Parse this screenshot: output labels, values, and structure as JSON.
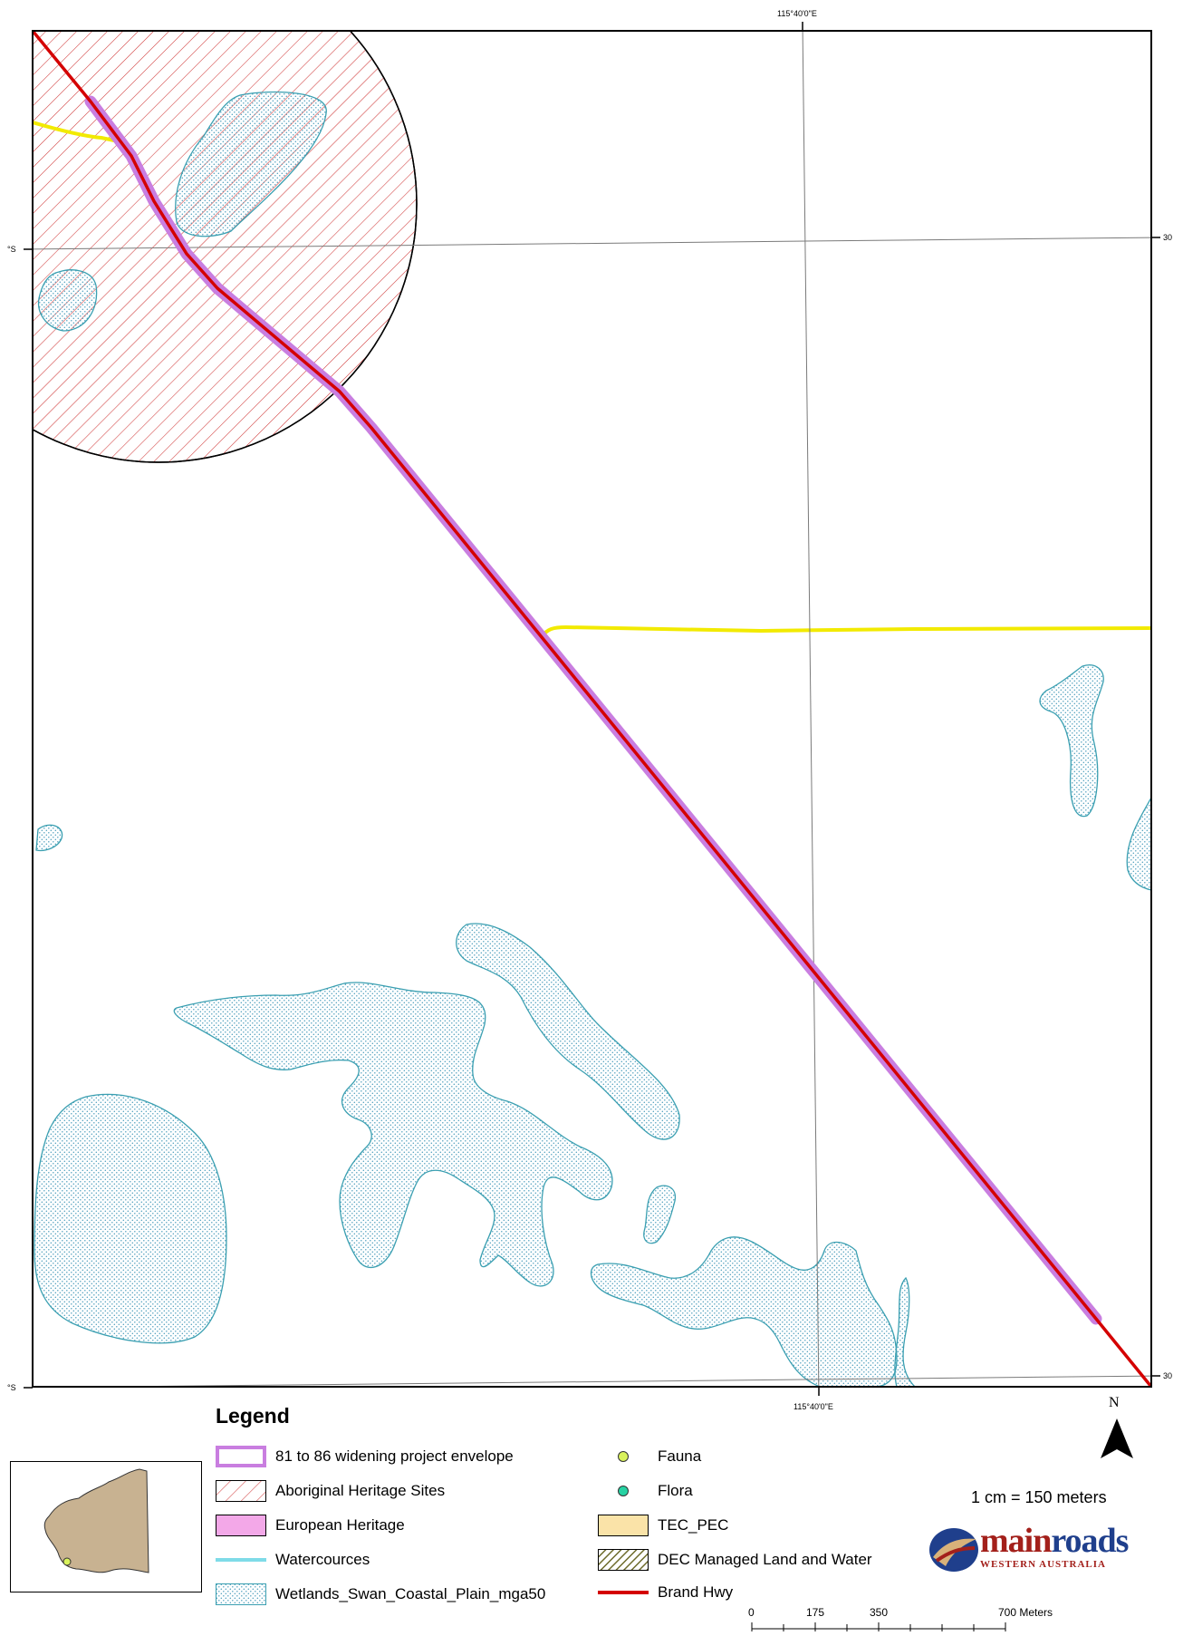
{
  "colors": {
    "road": "#d40000",
    "envelope": "#c97ee0",
    "wetland_stroke": "#3a9fb1",
    "wetland_dot": "#4f9fbd",
    "watercourse": "#f2ea00",
    "heritage_hatch": "#d03a3a",
    "european_heritage": "#f3a8e8",
    "tec_pec": "#fae3a8",
    "dec_land": "#6d6b2b",
    "watercourse_legend": "#7fdbe8",
    "fauna": "#d9f25c",
    "flora": "#27d2a3",
    "inset_land": "#c8b291"
  },
  "graticule": {
    "top_label": "115°40'0\"E",
    "bottom_label": "115°40'0\"E",
    "left_upper_label": "°S",
    "left_lower_label": "°S",
    "right_upper_label": "30",
    "right_lower_label": "30"
  },
  "legend": {
    "title": "Legend",
    "items": [
      {
        "label": "81 to 86 widening project envelope",
        "swatch": "envelope-outline"
      },
      {
        "label": "Aboriginal Heritage Sites",
        "swatch": "hatch"
      },
      {
        "label": "European Heritage",
        "swatch": "pink-fill"
      },
      {
        "label": "Watercources",
        "swatch": "cyan-line"
      },
      {
        "label": "Wetlands_Swan_Coastal_Plain_mga50",
        "swatch": "dotted"
      },
      {
        "label": "Fauna",
        "swatch": "yellow-dot"
      },
      {
        "label": "Flora",
        "swatch": "green-dot"
      },
      {
        "label": "TEC_PEC",
        "swatch": "tan-fill"
      },
      {
        "label": "DEC Managed Land and Water",
        "swatch": "olive-hatch"
      },
      {
        "label": "Brand Hwy",
        "swatch": "red-line"
      }
    ]
  },
  "north_arrow": {
    "label": "N"
  },
  "scale": {
    "text": "1 cm = 150 meters",
    "ticks": [
      "0",
      "175",
      "350",
      "700 Meters"
    ]
  },
  "logo": {
    "word_red": "main",
    "word_blue": "roads",
    "subtitle": "WESTERN AUSTRALIA"
  }
}
